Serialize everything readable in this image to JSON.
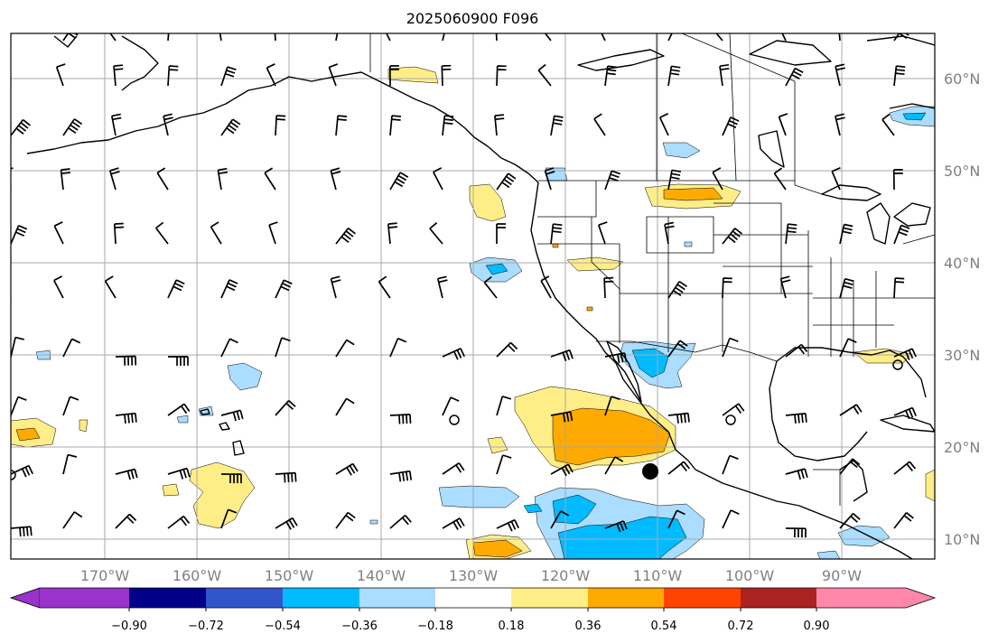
{
  "title": "2025060900 F096",
  "map": {
    "lon_labels": [
      "170°W",
      "160°W",
      "150°W",
      "140°W",
      "130°W",
      "120°W",
      "110°W",
      "100°W",
      "90°W"
    ],
    "lat_labels": [
      "60°N",
      "50°N",
      "40°N",
      "30°N",
      "20°N",
      "10°N"
    ]
  },
  "colorbar": {
    "ticks": [
      "−0.90",
      "−0.72",
      "−0.54",
      "−0.36",
      "−0.18",
      "0.18",
      "0.36",
      "0.54",
      "0.72",
      "0.90"
    ],
    "colors": [
      "#9933cc",
      "#000088",
      "#3355cc",
      "#00bbff",
      "#aaddff",
      "#ffffff",
      "#ffee88",
      "#ffaa00",
      "#ff4400",
      "#aa2222",
      "#ff88aa"
    ]
  },
  "colors": {
    "light_blue": "#aaddff",
    "cyan": "#00bbff",
    "light_yellow": "#ffee88",
    "orange": "#ffaa00"
  }
}
